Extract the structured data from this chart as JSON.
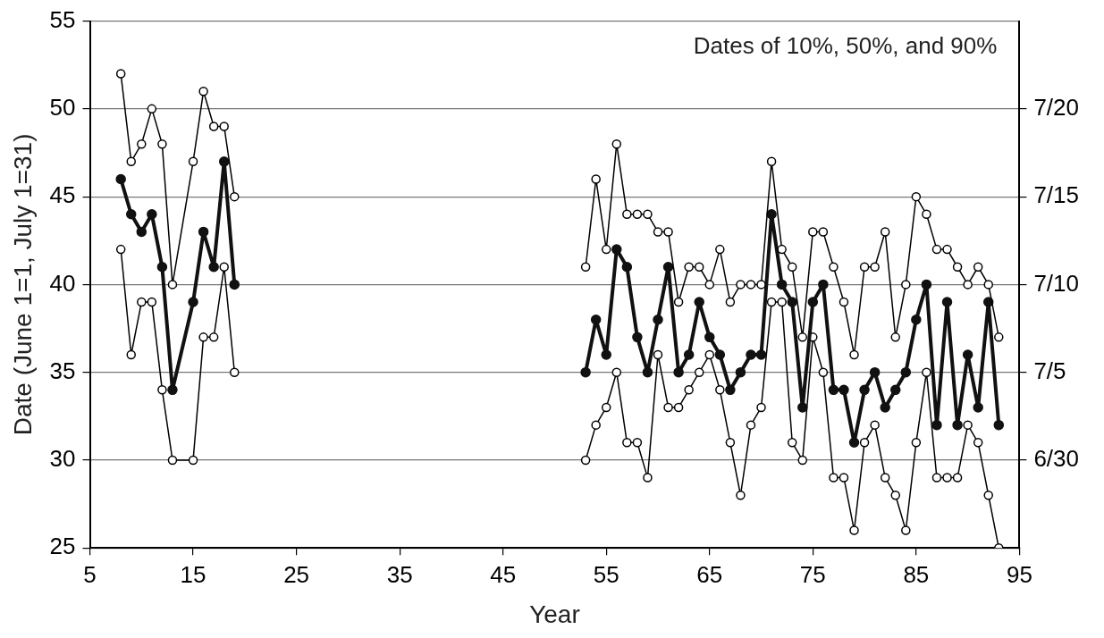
{
  "chart_data": {
    "type": "line",
    "xlabel": "Year",
    "ylabel": "Date (June 1=1, July 1=31)",
    "annotations": [
      "Dates of 10%, 50%, and 90%"
    ],
    "x": [
      8,
      9,
      10,
      11,
      12,
      13,
      15,
      16,
      17,
      18,
      19,
      36,
      53,
      54,
      55,
      56,
      57,
      58,
      59,
      60,
      61,
      62,
      63,
      64,
      65,
      66,
      67,
      68,
      69,
      70,
      71,
      72,
      73,
      74,
      75,
      76,
      77,
      78,
      79,
      80,
      81,
      82,
      83,
      84,
      85,
      86,
      87,
      88,
      89,
      90,
      91,
      92,
      93
    ],
    "series": [
      {
        "color": "#000000",
        "values": [
          52,
          47,
          48,
          50,
          48,
          40,
          47,
          51,
          49,
          49,
          45,
          null,
          41,
          46,
          42,
          48,
          44,
          44,
          44,
          43,
          43,
          39,
          41,
          41,
          40,
          42,
          39,
          40,
          40,
          40,
          47,
          42,
          41,
          37,
          43,
          43,
          41,
          39,
          36,
          41,
          41,
          43,
          37,
          40,
          45,
          44,
          42,
          42,
          41,
          40,
          41,
          40,
          37
        ]
      },
      {
        "color": "#111111",
        "values": [
          46,
          44,
          43,
          44,
          41,
          34,
          39,
          43,
          41,
          47,
          40,
          null,
          35,
          38,
          36,
          42,
          41,
          37,
          35,
          38,
          41,
          35,
          36,
          39,
          37,
          36,
          34,
          35,
          36,
          36,
          44,
          40,
          39,
          33,
          39,
          40,
          34,
          34,
          31,
          34,
          35,
          33,
          34,
          35,
          38,
          40,
          32,
          39,
          32,
          36,
          33,
          39,
          32
        ]
      },
      {
        "color": "#000000",
        "values": [
          42,
          36,
          39,
          39,
          34,
          30,
          30,
          37,
          37,
          41,
          35,
          null,
          30,
          32,
          33,
          35,
          31,
          31,
          29,
          36,
          33,
          33,
          34,
          35,
          36,
          34,
          31,
          28,
          32,
          33,
          39,
          39,
          31,
          30,
          37,
          35,
          29,
          29,
          26,
          31,
          32,
          29,
          28,
          26,
          31,
          35,
          29,
          29,
          29,
          32,
          31,
          28,
          25
        ]
      }
    ],
    "xlim": [
      5,
      95
    ],
    "xticks": [
      5,
      15,
      25,
      35,
      45,
      55,
      65,
      75,
      85,
      95
    ],
    "ylim": [
      25,
      55
    ],
    "yticks": [
      25,
      30,
      35,
      40,
      45,
      50,
      55
    ],
    "y2lim": [
      "--06-25",
      "--07-25"
    ],
    "y2ticks": [
      {
        "value": "--06-30",
        "label": "6/30"
      },
      {
        "value": "--07-05",
        "label": "7/5"
      },
      {
        "value": "--07-10",
        "label": "7/10"
      },
      {
        "value": "--07-15",
        "label": "7/15"
      },
      {
        "value": "--07-20",
        "label": "7/20"
      }
    ],
    "grid": "y",
    "legend": false,
    "marker": "circle",
    "line_style": "solid"
  }
}
